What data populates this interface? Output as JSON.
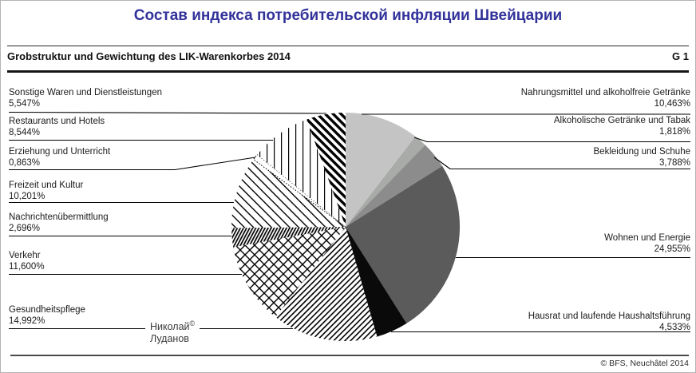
{
  "page_title": "Состав индекса потребительской инфляции Швейцарии",
  "header": {
    "g_label": "G 1"
  },
  "footer": {
    "copyright": "© BFS, Neuchâtel 2014"
  },
  "watermark": {
    "name": "Николай",
    "mark": "©",
    "surname": "Луданов"
  },
  "colors": {
    "title_blue": "#32329b",
    "rule_dark": "#151515"
  },
  "chart_data": {
    "type": "pie",
    "title": "Grobstruktur und Gewichtung des LIK-Warenkorbes 2014",
    "unit": "%",
    "total": 100,
    "start_angle_deg": 0,
    "direction": "clockwise",
    "legend_position": "callout-labels",
    "categories": [
      {
        "label": "Nahrungsmittel und alkoholfreie Getränke",
        "value": 10.463,
        "value_display": "10,463%",
        "side": "right",
        "fill": "#c4c4c4"
      },
      {
        "label": "Alkoholische Getränke und Tabak",
        "value": 1.818,
        "value_display": "1,818%",
        "side": "right",
        "fill": "#a8aba8"
      },
      {
        "label": "Bekleidung und Schuhe",
        "value": 3.788,
        "value_display": "3,788%",
        "side": "right",
        "fill": "#8c8c8c"
      },
      {
        "label": "Wohnen und Energie",
        "value": 24.955,
        "value_display": "24,955%",
        "side": "right",
        "fill": "#5b5b5b"
      },
      {
        "label": "Hausrat und laufende Haushaltsführung",
        "value": 4.533,
        "value_display": "4,533%",
        "side": "right",
        "fill": "#0a0a0a"
      },
      {
        "label": "Gesundheitspflege",
        "value": 14.992,
        "value_display": "14,992%",
        "side": "left",
        "pattern": "diagonal-fine"
      },
      {
        "label": "Verkehr",
        "value": 11.6,
        "value_display": "11,600%",
        "side": "left",
        "pattern": "crosshatch"
      },
      {
        "label": "Nachrichtenübermittlung",
        "value": 2.696,
        "value_display": "2,696%",
        "side": "left",
        "pattern": "dense-steep"
      },
      {
        "label": "Freizeit und Kultur",
        "value": 10.201,
        "value_display": "10,201%",
        "side": "left",
        "pattern": "diagonal-sparse"
      },
      {
        "label": "Erziehung und Unterricht",
        "value": 0.863,
        "value_display": "0,863%",
        "side": "left",
        "pattern": "dotted-outline"
      },
      {
        "label": "Restaurants und Hotels",
        "value": 8.544,
        "value_display": "8,544%",
        "side": "left",
        "pattern": "vertical-lines"
      },
      {
        "label": "Sonstige Waren und Dienstleistungen",
        "value": 5.547,
        "value_display": "5,547%",
        "side": "left",
        "pattern": "diagonal-bold"
      }
    ]
  }
}
